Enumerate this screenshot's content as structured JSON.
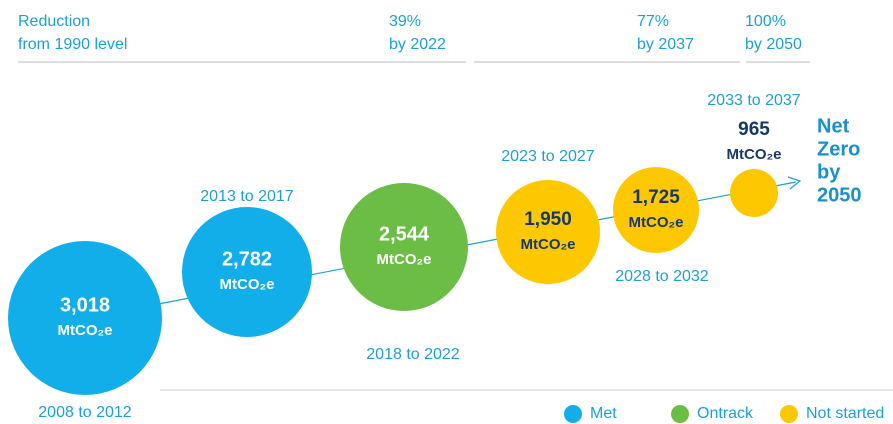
{
  "header": {
    "title": [
      "Reduction",
      "from 1990 level"
    ],
    "milestones": [
      {
        "percent": "39%",
        "by": "by 2022"
      },
      {
        "percent": "77%",
        "by": "by 2037"
      },
      {
        "percent": "100%",
        "by": "by 2050"
      }
    ]
  },
  "unit": "MtCO₂e",
  "nodes": [
    {
      "value": "3,018",
      "period": "2008 to 2012",
      "status": "Met"
    },
    {
      "value": "2,782",
      "period": "2013 to 2017",
      "status": "Met"
    },
    {
      "value": "2,544",
      "period": "2018 to 2022",
      "status": "Ontrack"
    },
    {
      "value": "1,950",
      "period": "2023 to 2027",
      "status": "Not started"
    },
    {
      "value": "1,725",
      "period": "2028 to 2032",
      "status": "Not started"
    },
    {
      "value": "965",
      "period": "2033 to 2037",
      "status": "Not started"
    }
  ],
  "goal": [
    "Net",
    "Zero",
    "by",
    "2050"
  ],
  "legend": [
    {
      "label": "Met",
      "color": "#12aeea"
    },
    {
      "label": "Ontrack",
      "color": "#6cbd45"
    },
    {
      "label": "Not started",
      "color": "#fdc800"
    }
  ]
}
